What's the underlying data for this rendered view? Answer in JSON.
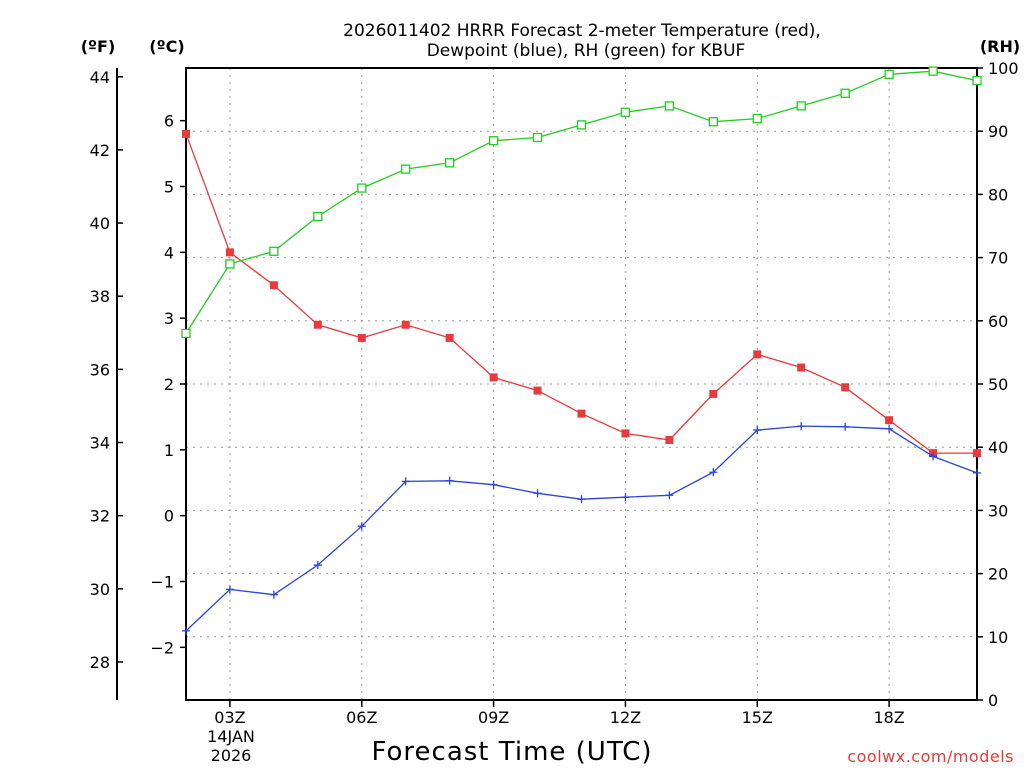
{
  "chart_data": {
    "type": "line",
    "title_line1": "2026011402 HRRR Forecast 2-meter Temperature (red),",
    "title_line2": "Dewpoint (blue), RH (green) for KBUF",
    "xlabel": "Forecast Time (UTC)",
    "credit": "coolwx.com/models",
    "date_label_day": "14JAN",
    "date_label_year": "2026",
    "unit_left_f": "(ºF)",
    "unit_left_c": "(ºC)",
    "unit_right_rh": "(RH)",
    "x_hours": [
      2,
      3,
      4,
      5,
      6,
      7,
      8,
      9,
      10,
      11,
      12,
      13,
      14,
      15,
      16,
      17,
      18,
      19,
      20
    ],
    "x_ticks": [
      {
        "hour": 3,
        "label": "03Z"
      },
      {
        "hour": 6,
        "label": "06Z"
      },
      {
        "hour": 9,
        "label": "09Z"
      },
      {
        "hour": 12,
        "label": "12Z"
      },
      {
        "hour": 15,
        "label": "15Z"
      },
      {
        "hour": 18,
        "label": "18Z"
      }
    ],
    "xlim": [
      2,
      20
    ],
    "celsius_axis": {
      "lim": [
        -2.8,
        6.8
      ],
      "ticks": [
        -2,
        -1,
        0,
        1,
        2,
        3,
        4,
        5,
        6
      ],
      "tick_labels": [
        "−2",
        "−1",
        "0",
        "1",
        "2",
        "3",
        "4",
        "5",
        "6"
      ]
    },
    "fahrenheit_axis": {
      "ticks": [
        28,
        30,
        32,
        34,
        36,
        38,
        40,
        42,
        44
      ],
      "tick_labels": [
        "28",
        "30",
        "32",
        "34",
        "36",
        "38",
        "40",
        "42",
        "44"
      ]
    },
    "rh_axis": {
      "lim": [
        0,
        100
      ],
      "ticks": [
        0,
        10,
        20,
        30,
        40,
        50,
        60,
        70,
        80,
        90,
        100
      ],
      "tick_labels": [
        "0",
        "10",
        "20",
        "30",
        "40",
        "50",
        "60",
        "70",
        "80",
        "90",
        "100"
      ]
    },
    "series": [
      {
        "name": "Temperature",
        "unit": "C",
        "color": "#e83a3a",
        "marker": "filled-square",
        "values": [
          5.8,
          4.0,
          3.5,
          2.9,
          2.7,
          2.9,
          2.7,
          2.1,
          1.9,
          1.55,
          1.25,
          1.15,
          1.85,
          2.45,
          2.25,
          1.95,
          1.45,
          0.95,
          0.95
        ]
      },
      {
        "name": "Dewpoint",
        "unit": "C",
        "color": "#2a45d8",
        "marker": "plus",
        "values": [
          -1.75,
          -1.12,
          -1.2,
          -0.75,
          -0.16,
          0.52,
          0.53,
          0.47,
          0.34,
          0.25,
          0.28,
          0.31,
          0.66,
          1.3,
          1.36,
          1.35,
          1.32,
          0.9,
          0.65
        ]
      },
      {
        "name": "RH",
        "unit": "%",
        "color": "#22cc22",
        "marker": "open-square",
        "values": [
          58,
          69,
          71,
          76.5,
          81,
          84,
          85,
          88.5,
          89,
          91,
          93,
          94,
          91.5,
          92,
          94,
          96,
          99,
          99.5,
          98
        ]
      }
    ]
  }
}
